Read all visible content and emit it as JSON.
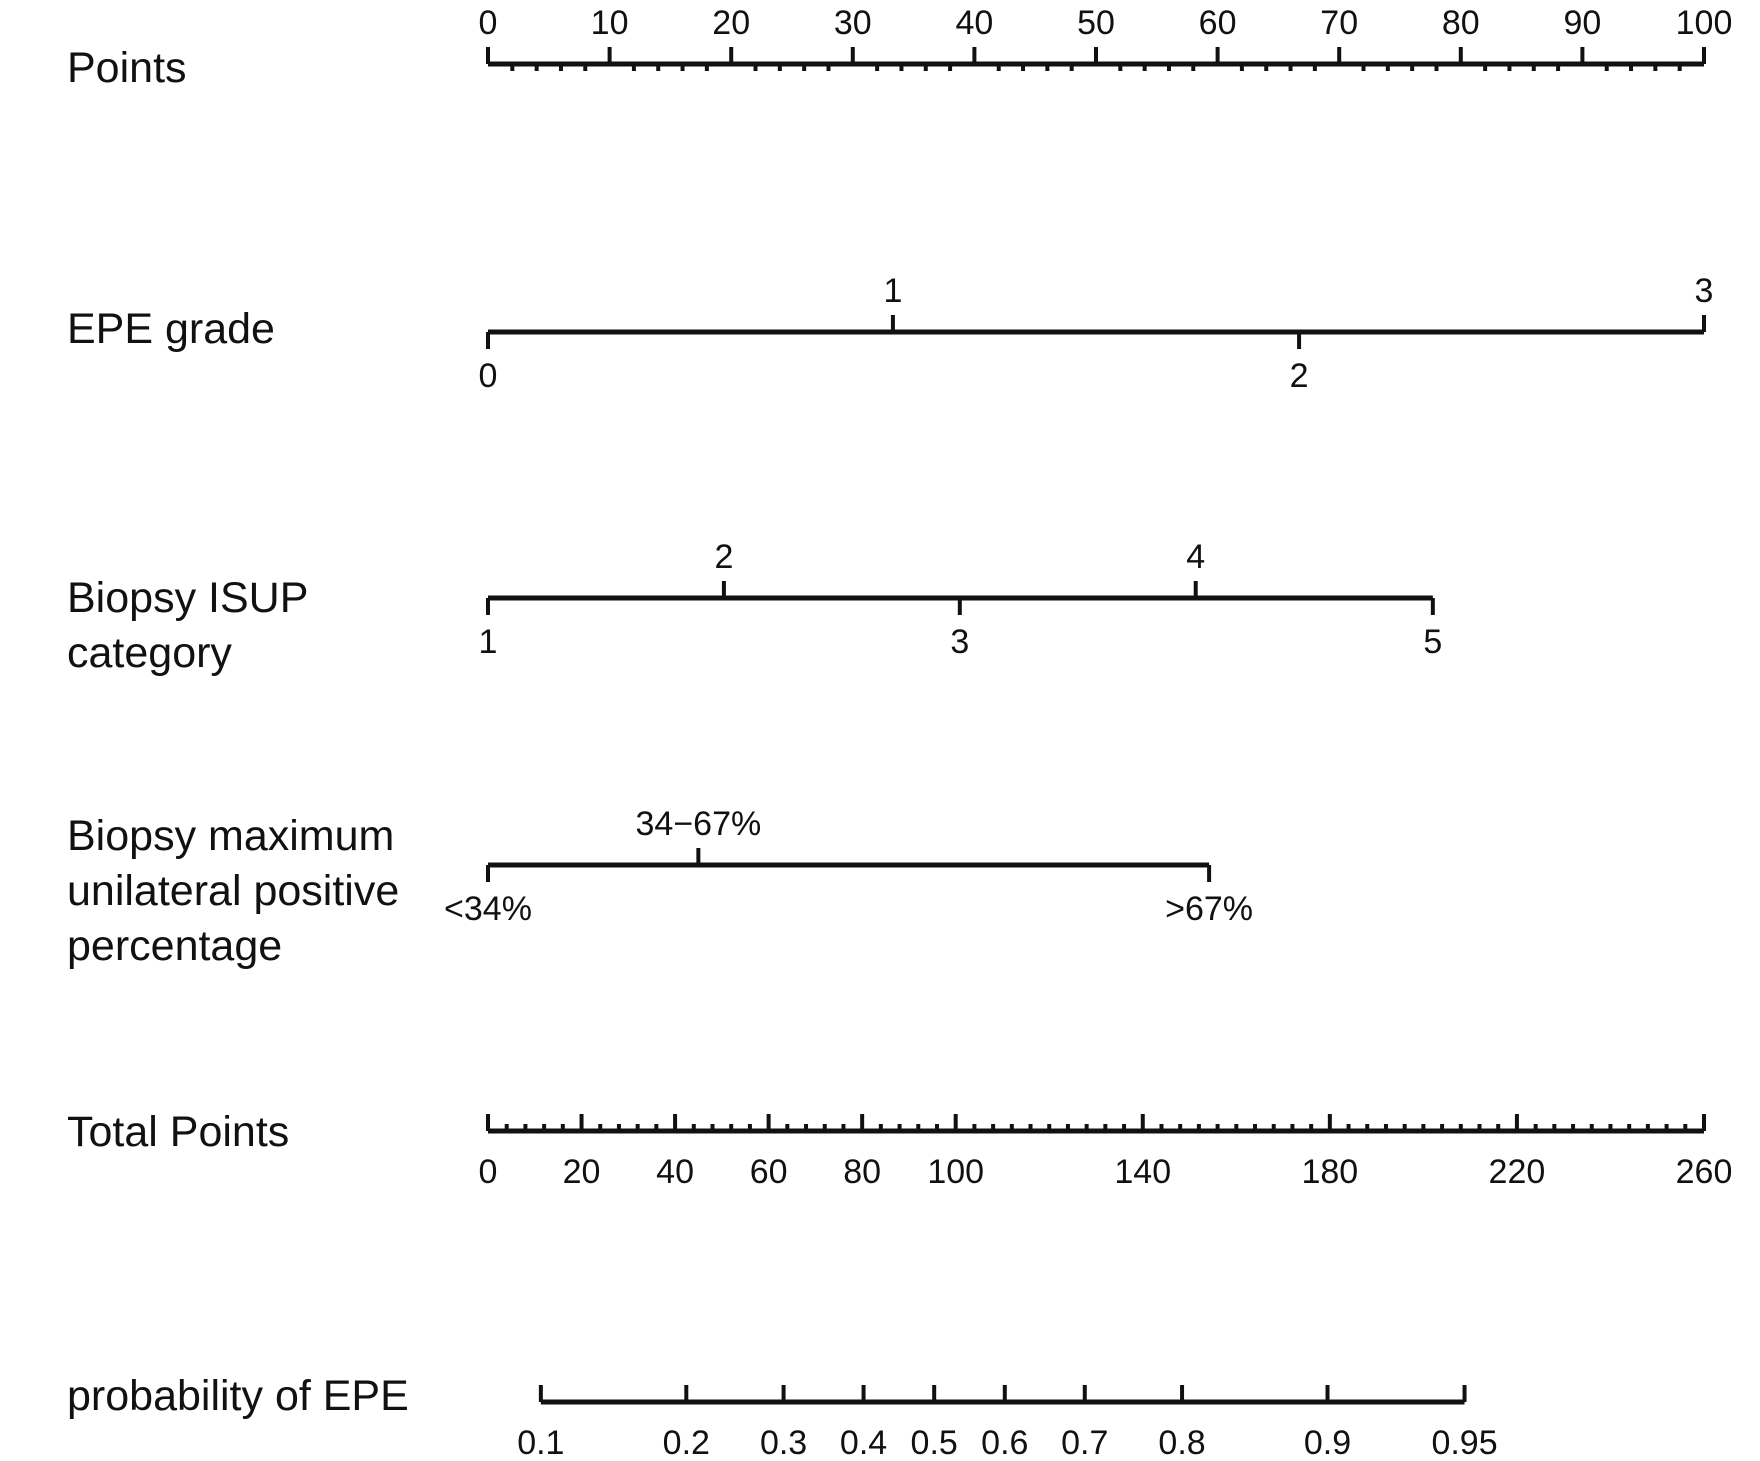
{
  "chart_data": {
    "type": "nomogram",
    "title": "",
    "rows": [
      {
        "name": "Points",
        "label_lines": [
          "Points"
        ],
        "scale": [
          0,
          100
        ],
        "ticks": [
          {
            "label": "0",
            "value": 0
          },
          {
            "label": "10",
            "value": 10
          },
          {
            "label": "20",
            "value": 20
          },
          {
            "label": "30",
            "value": 30
          },
          {
            "label": "40",
            "value": 40
          },
          {
            "label": "50",
            "value": 50
          },
          {
            "label": "60",
            "value": 60
          },
          {
            "label": "70",
            "value": 70
          },
          {
            "label": "80",
            "value": 80
          },
          {
            "label": "90",
            "value": 90
          },
          {
            "label": "100",
            "value": 100
          }
        ],
        "minor_step": 2,
        "label_side": "above"
      },
      {
        "name": "EPE grade",
        "label_lines": [
          "EPE grade"
        ],
        "levels": [
          {
            "label": "0",
            "points": 0
          },
          {
            "label": "1",
            "points": 33.3
          },
          {
            "label": "2",
            "points": 66.7
          },
          {
            "label": "3",
            "points": 100
          }
        ],
        "label_side": "alternating"
      },
      {
        "name": "Biopsy ISUP category",
        "label_lines": [
          "Biopsy ISUP",
          "category"
        ],
        "levels": [
          {
            "label": "1",
            "points": 0
          },
          {
            "label": "2",
            "points": 19.4
          },
          {
            "label": "3",
            "points": 38.8
          },
          {
            "label": "4",
            "points": 58.2
          },
          {
            "label": "5",
            "points": 77.7
          }
        ],
        "label_side": "alternating"
      },
      {
        "name": "Biopsy maximum unilateral positive percentage",
        "label_lines": [
          "Biopsy maximum",
          "unilateral positive",
          "percentage"
        ],
        "levels": [
          {
            "label": "<34%",
            "points": 0
          },
          {
            "label": "34−67%",
            "points": 17.3
          },
          {
            "label": ">67%",
            "points": 59.3
          }
        ],
        "label_side": "alternating"
      },
      {
        "name": "Total Points",
        "label_lines": [
          "Total Points"
        ],
        "scale": [
          0,
          260
        ],
        "ticks": [
          {
            "label": "0",
            "value": 0
          },
          {
            "label": "20",
            "value": 20
          },
          {
            "label": "40",
            "value": 40
          },
          {
            "label": "60",
            "value": 60
          },
          {
            "label": "80",
            "value": 80
          },
          {
            "label": "100",
            "value": 100
          },
          {
            "label": "140",
            "value": 140
          },
          {
            "label": "180",
            "value": 180
          },
          {
            "label": "220",
            "value": 220
          },
          {
            "label": "260",
            "value": 260
          }
        ],
        "minor_step": 4,
        "label_side": "below"
      },
      {
        "name": "probability of EPE",
        "label_lines": [
          "probability of EPE"
        ],
        "ticks": [
          {
            "label": "0.1",
            "total_points": 11.3
          },
          {
            "label": "0.2",
            "total_points": 42.4
          },
          {
            "label": "0.3",
            "total_points": 63.2
          },
          {
            "label": "0.4",
            "total_points": 80.3
          },
          {
            "label": "0.5",
            "total_points": 95.4
          },
          {
            "label": "0.6",
            "total_points": 110.5
          },
          {
            "label": "0.7",
            "total_points": 127.6
          },
          {
            "label": "0.8",
            "total_points": 148.4
          },
          {
            "label": "0.9",
            "total_points": 179.5
          },
          {
            "label": "0.95",
            "total_points": 208.8
          }
        ],
        "label_side": "below"
      }
    ]
  }
}
